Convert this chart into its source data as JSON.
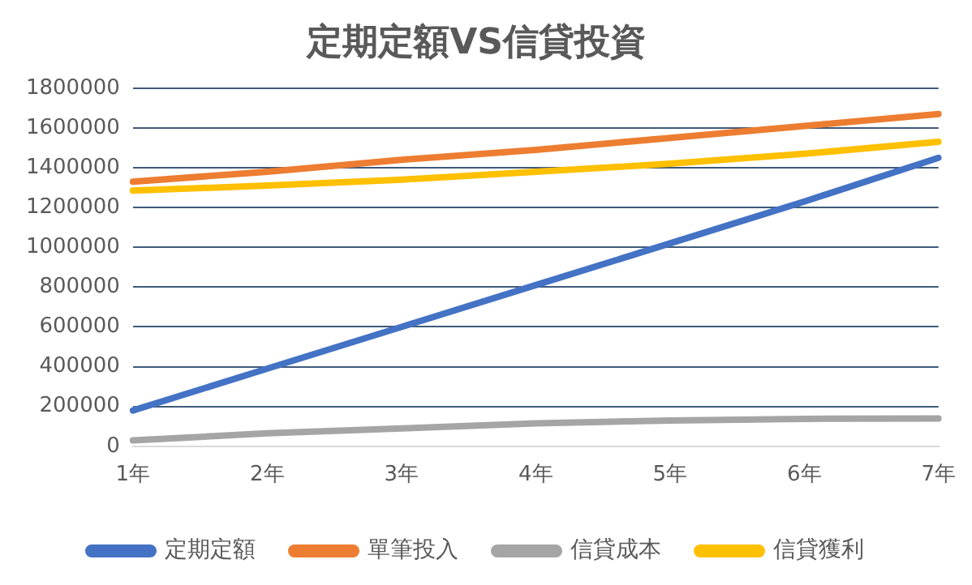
{
  "chart_data": {
    "type": "line",
    "title": "定期定額VS信貸投資",
    "categories": [
      "1年",
      "2年",
      "3年",
      "4年",
      "5年",
      "6年",
      "7年"
    ],
    "series": [
      {
        "name": "定期定額",
        "color": "#4472c4",
        "values": [
          180000,
          390000,
          600000,
          810000,
          1020000,
          1230000,
          1450000
        ]
      },
      {
        "name": "單筆投入",
        "color": "#ed7d31",
        "values": [
          1330000,
          1380000,
          1440000,
          1490000,
          1550000,
          1610000,
          1670000
        ]
      },
      {
        "name": "信貸成本",
        "color": "#a5a5a5",
        "values": [
          30000,
          65000,
          90000,
          115000,
          130000,
          138000,
          140000
        ]
      },
      {
        "name": "信貸獲利",
        "color": "#ffc000",
        "values": [
          1285000,
          1310000,
          1340000,
          1380000,
          1420000,
          1470000,
          1530000
        ]
      }
    ],
    "ylim": [
      0,
      1800000
    ],
    "yticks": [
      0,
      200000,
      400000,
      600000,
      800000,
      1000000,
      1200000,
      1400000,
      1600000,
      1800000
    ],
    "grid": "y",
    "legend": "bottom",
    "marker": "none",
    "line_style": "solid"
  }
}
